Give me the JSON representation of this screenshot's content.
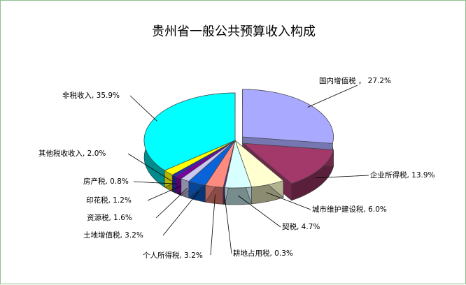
{
  "chart_data": {
    "type": "pie",
    "title": "贵州省一般公共预算收入构成",
    "slices": [
      {
        "label": "国内增值税 ， 27.2%",
        "value": 27.2,
        "color": "#a9a9ff"
      },
      {
        "label": "企业所得税, 13.9%",
        "value": 13.9,
        "color": "#a3386b"
      },
      {
        "label": "城市维护建设税, 6.0%",
        "value": 6.0,
        "color": "#ffffd0"
      },
      {
        "label": "契税, 4.7%",
        "value": 4.7,
        "color": "#d8ffff"
      },
      {
        "label": "耕地占用税, 0.3%",
        "value": 0.3,
        "color": "#5d2a8a"
      },
      {
        "label": "个人所得税, 3.2%",
        "value": 3.2,
        "color": "#ff8a80"
      },
      {
        "label": "土地增值税, 3.2%",
        "value": 3.2,
        "color": "#0a63d8"
      },
      {
        "label": "资源税, 1.6%",
        "value": 1.6,
        "color": "#c9c9f2"
      },
      {
        "label": "印花税, 1.2%",
        "value": 1.2,
        "color": "#7a00a0"
      },
      {
        "label": "房产税, 0.8%",
        "value": 0.8,
        "color": "#2828b0"
      },
      {
        "label": "其他税收收入, 2.0%",
        "value": 2.0,
        "color": "#ffff00"
      },
      {
        "label": "非税收入, 35.9%",
        "value": 35.9,
        "color": "#00ffff"
      }
    ]
  }
}
